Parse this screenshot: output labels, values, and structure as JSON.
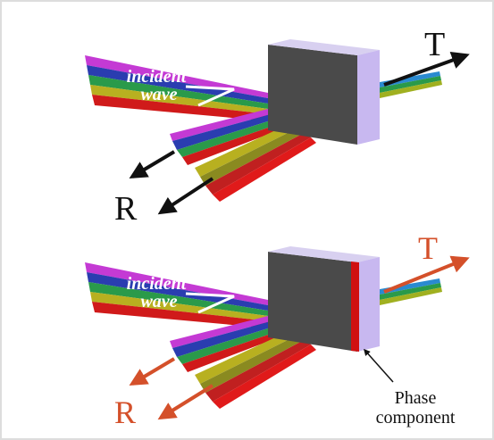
{
  "panels": [
    {
      "incident_label": [
        "incident",
        "wave"
      ],
      "transmitted": "T",
      "reflected": "R"
    },
    {
      "incident_label": [
        "incident",
        "wave"
      ],
      "transmitted": "T",
      "reflected": "R",
      "annotation": [
        "Phase",
        "component"
      ]
    }
  ]
}
